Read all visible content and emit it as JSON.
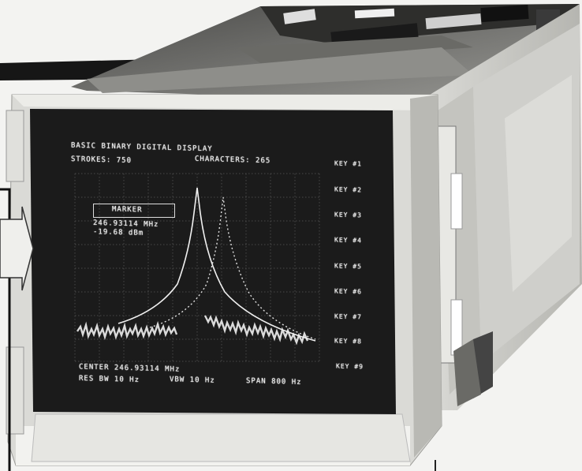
{
  "display": {
    "title": "BASIC BINARY DIGITAL DISPLAY",
    "strokes": "STROKES: 750",
    "characters": "CHARACTERS: 265",
    "marker_label": "MARKER",
    "marker_freq": "246.93114 MHz",
    "marker_level": "-19.68 dBm",
    "center": "CENTER 246.93114 MHz",
    "res_bw": "RES BW 10 Hz",
    "vbw": "VBW 10 Hz",
    "span": "SPAN 800 Hz",
    "keys": [
      "KEY #1",
      "KEY #2",
      "KEY #3",
      "KEY #4",
      "KEY #5",
      "KEY #6",
      "KEY #7",
      "KEY #8",
      "KEY #9"
    ]
  },
  "colors": {
    "screen": "#1c1c1c",
    "bezel": "#d6d6d2",
    "chassis": "#8a8a86",
    "trace": "#f0f0f0"
  }
}
